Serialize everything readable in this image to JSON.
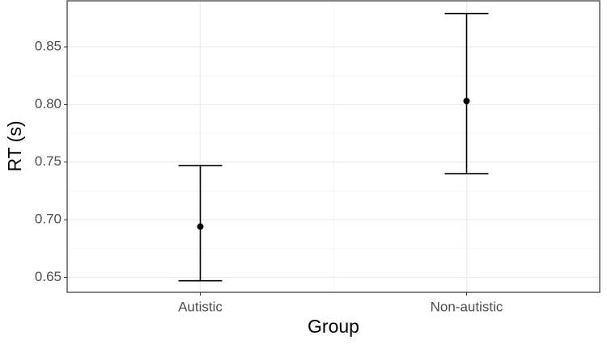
{
  "chart_data": {
    "type": "errorbar",
    "x_label": "Group",
    "y_label": "RT (s)",
    "categories": [
      "Autistic",
      "Non-autistic"
    ],
    "values": [
      0.694,
      0.803
    ],
    "lower": [
      0.647,
      0.74
    ],
    "upper": [
      0.747,
      0.879
    ],
    "color": "#000000",
    "ylim": [
      0.637,
      0.89
    ],
    "yticks": [
      {
        "value": 0.65,
        "label": "0.65"
      },
      {
        "value": 0.7,
        "label": "0.70"
      },
      {
        "value": 0.75,
        "label": "0.75"
      },
      {
        "value": 0.8,
        "label": "0.80"
      },
      {
        "value": 0.85,
        "label": "0.85"
      }
    ],
    "yminor": [
      0.675,
      0.725,
      0.775,
      0.825
    ],
    "grid": true
  }
}
